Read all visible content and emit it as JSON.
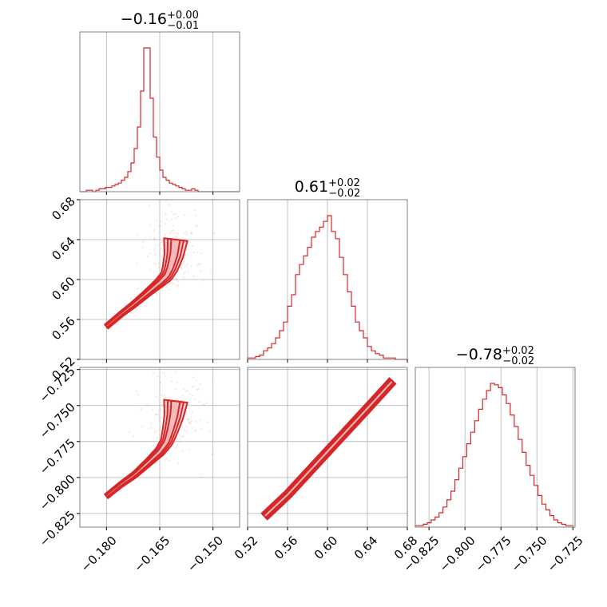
{
  "chart_data": {
    "type": "scatter",
    "subtype": "corner-plot",
    "color": "#d62728",
    "fill_color": "#f4b8b9",
    "grid": true,
    "parameters": [
      {
        "title": {
          "main": "−0.16",
          "upper": "+0.00",
          "lower": "−0.01"
        },
        "range": [
          -0.1875,
          -0.1425
        ],
        "ticks": [
          -0.18,
          -0.165,
          -0.15
        ],
        "tick_labels": [
          "−0.180",
          "−0.165",
          "−0.150"
        ],
        "median": -0.162,
        "sigma": 0.003
      },
      {
        "title": {
          "main": "0.61",
          "upper": "+0.02",
          "lower": "−0.02"
        },
        "range": [
          0.52,
          0.68
        ],
        "ticks": [
          0.52,
          0.56,
          0.6,
          0.64,
          0.68
        ],
        "tick_labels": [
          "0.52",
          "0.56",
          "0.60",
          "0.64",
          "0.68"
        ],
        "median": 0.61,
        "sigma": 0.021
      },
      {
        "title": {
          "main": "−0.78",
          "upper": "+0.02",
          "lower": "−0.02"
        },
        "range": [
          -0.8345,
          -0.7235
        ],
        "ticks": [
          -0.825,
          -0.8,
          -0.775,
          -0.75,
          -0.725
        ],
        "tick_labels": [
          "−0.825",
          "−0.800",
          "−0.775",
          "−0.750",
          "−0.725"
        ],
        "median": -0.777,
        "sigma": 0.015
      }
    ],
    "histograms": [
      {
        "param": 0,
        "bin_start": -0.1875,
        "bin_width": 0.0009,
        "counts": [
          0,
          0,
          1,
          1,
          0,
          1,
          2,
          2,
          3,
          3,
          4,
          5,
          6,
          8,
          10,
          14,
          20,
          30,
          45,
          70,
          100,
          100,
          65,
          38,
          24,
          15,
          10,
          8,
          6,
          5,
          4,
          3,
          2,
          1,
          1,
          2,
          1,
          0,
          0,
          0,
          0,
          0,
          0,
          0,
          0,
          0,
          0,
          0,
          0,
          0
        ]
      },
      {
        "param": 1,
        "bin_start": 0.52,
        "bin_width": 0.004,
        "counts": [
          1,
          1,
          2,
          3,
          6,
          8,
          11,
          15,
          20,
          26,
          37,
          45,
          59,
          66,
          72,
          78,
          85,
          89,
          92,
          96,
          100,
          89,
          84,
          71,
          59,
          47,
          37,
          26,
          20,
          15,
          9,
          6,
          4,
          3,
          1,
          1,
          1,
          0,
          0,
          0
        ]
      },
      {
        "param": 2,
        "bin_start": -0.8345,
        "bin_width": 0.00275,
        "counts": [
          1,
          1,
          2,
          3,
          5,
          7,
          10,
          14,
          19,
          25,
          33,
          41,
          49,
          58,
          66,
          74,
          82,
          89,
          95,
          100,
          99,
          97,
          92,
          86,
          78,
          70,
          61,
          52,
          43,
          36,
          29,
          22,
          16,
          12,
          8,
          5,
          3,
          2,
          1,
          1
        ]
      }
    ],
    "pairs": [
      {
        "x_param": 0,
        "y_param": 1,
        "ridge": [
          [
            -0.18,
            0.553
          ],
          [
            -0.176,
            0.565
          ],
          [
            -0.172,
            0.576
          ],
          [
            -0.168,
            0.588
          ],
          [
            -0.165,
            0.597
          ],
          [
            -0.163,
            0.604
          ],
          [
            -0.162,
            0.612
          ],
          [
            -0.161,
            0.625
          ],
          [
            -0.1605,
            0.64
          ]
        ],
        "scatter_bounds": {
          "x": [
            -0.183,
            -0.148
          ],
          "y": [
            0.545,
            0.67
          ]
        }
      },
      {
        "x_param": 0,
        "y_param": 2,
        "ridge": [
          [
            -0.18,
            -0.813
          ],
          [
            -0.176,
            -0.805
          ],
          [
            -0.172,
            -0.798
          ],
          [
            -0.168,
            -0.789
          ],
          [
            -0.165,
            -0.782
          ],
          [
            -0.163,
            -0.775
          ],
          [
            -0.162,
            -0.767
          ],
          [
            -0.161,
            -0.757
          ],
          [
            -0.1605,
            -0.747
          ]
        ],
        "scatter_bounds": {
          "x": [
            -0.183,
            -0.148
          ],
          "y": [
            -0.82,
            -0.725
          ]
        }
      },
      {
        "x_param": 1,
        "y_param": 2,
        "ridge": [
          [
            0.537,
            -0.827
          ],
          [
            0.56,
            -0.812
          ],
          [
            0.58,
            -0.797
          ],
          [
            0.6,
            -0.782
          ],
          [
            0.62,
            -0.767
          ],
          [
            0.64,
            -0.752
          ],
          [
            0.665,
            -0.733
          ]
        ],
        "scatter_bounds": {
          "x": [
            0.53,
            0.675
          ],
          "y": [
            -0.832,
            -0.727
          ]
        }
      }
    ],
    "contour_levels": [
      0.39,
      0.86,
      0.99
    ]
  }
}
